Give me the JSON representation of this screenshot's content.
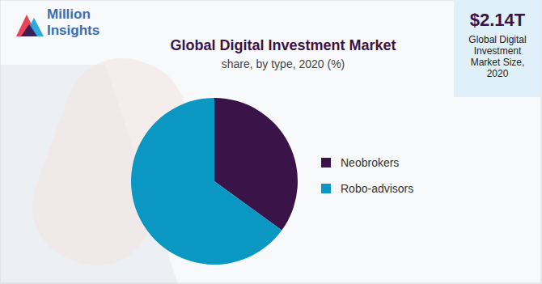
{
  "chart_data": {
    "type": "pie",
    "title": "Global Digital Investment Market",
    "subtitle": "share, by type, 2020 (%)",
    "categories": [
      "Neobrokers",
      "Robo-advisors"
    ],
    "values": [
      35,
      65
    ],
    "colors": [
      "#3a1449",
      "#0a97c1"
    ],
    "legend": "right",
    "data_labels": false
  },
  "logo": {
    "text": [
      "Million",
      "Insights"
    ]
  },
  "callout": {
    "value": "$2.14T",
    "label": "Global Digital Investment Market Size, 2020"
  }
}
